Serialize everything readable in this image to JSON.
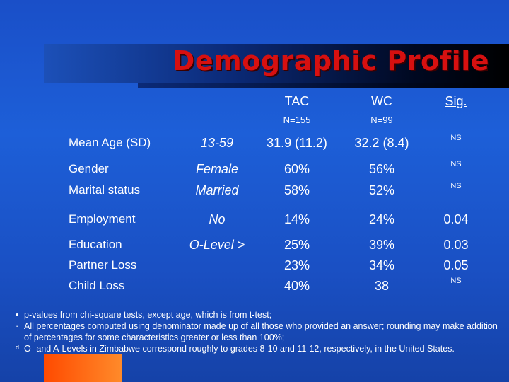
{
  "title": "Demographic Profile",
  "columns": {
    "tac": {
      "label": "TAC",
      "n": "N=155"
    },
    "wc": {
      "label": "WC",
      "n": "N=99"
    },
    "sig": {
      "label": "Sig."
    }
  },
  "rows": [
    {
      "label": "Mean Age (SD)",
      "category": "13-59",
      "tac": "31.9 (11.2)",
      "wc": "32.2 (8.4)",
      "sig": "NS"
    },
    {
      "label": "Gender",
      "category": "Female",
      "tac": "60%",
      "wc": "56%",
      "sig": "NS"
    },
    {
      "label": "Marital status",
      "category": "Married",
      "tac": "58%",
      "wc": "52%",
      "sig": "NS"
    },
    {
      "label": "Employment",
      "category": "No",
      "tac": "14%",
      "wc": "24%",
      "sig": "0.04"
    },
    {
      "label": "Education",
      "category": "O-Level >",
      "tac": "25%",
      "wc": "39%",
      "sig": "0.03"
    },
    {
      "label": "Partner Loss",
      "category": "",
      "tac": "23%",
      "wc": "34%",
      "sig": "0.05"
    },
    {
      "label": "Child Loss",
      "category": "",
      "tac": "40%",
      "wc": "38",
      "sig": "NS"
    }
  ],
  "footnotes": [
    {
      "marker": "•",
      "text": "p-values from chi-square tests, except age, which is from t-test;"
    },
    {
      "marker": "·",
      "text": "All percentages computed using denominator made up of all those who provided an answer; rounding may make addition of percentages for some characteristics greater or less than 100%;"
    },
    {
      "marker": "d",
      "text": "O- and A-Levels in Zimbabwe correspond roughly to grades 8-10 and 11-12, respectively, in the United States."
    }
  ]
}
